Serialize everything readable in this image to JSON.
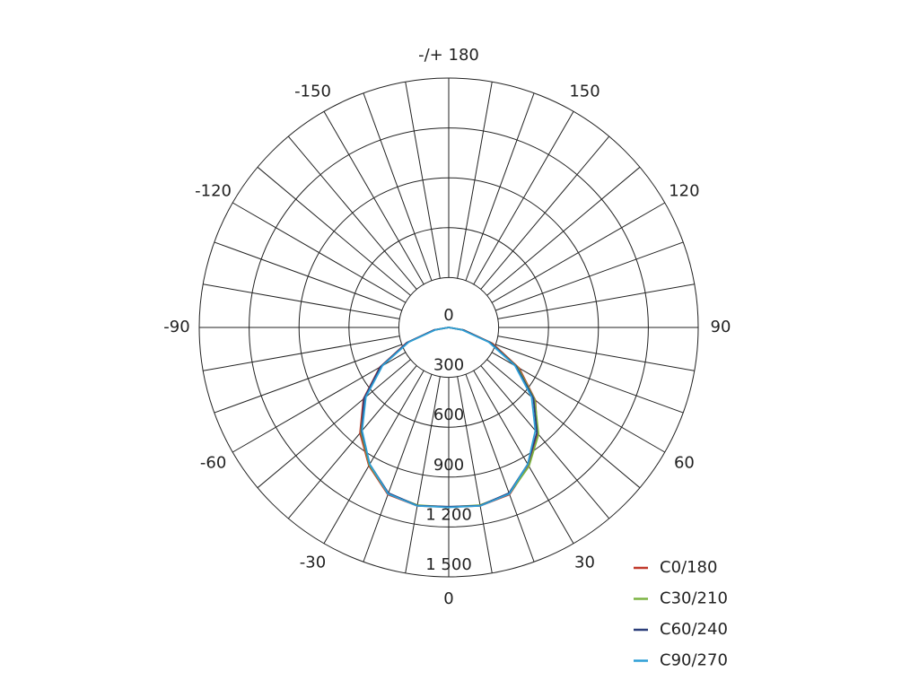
{
  "chart_data": {
    "type": "polar",
    "angle_ticks": [
      0,
      30,
      60,
      90,
      120,
      150,
      {
        "value": 180,
        "label": "-/+ 180"
      },
      -150,
      -120,
      -90,
      -60,
      -30
    ],
    "angle_grid_step": 10,
    "rlim": [
      0,
      1500
    ],
    "rticks": [
      0,
      300,
      600,
      900,
      {
        "value": 1200,
        "label": "1 200"
      },
      {
        "value": 1500,
        "label": "1 500"
      }
    ],
    "angles": [
      -90,
      -80,
      -70,
      -60,
      -50,
      -40,
      -30,
      -20,
      -10,
      0,
      10,
      20,
      30,
      40,
      50,
      60,
      70,
      80,
      90
    ],
    "series": [
      {
        "name": "C0/180",
        "color": "#c0392b",
        "values": [
          0,
          90,
          270,
          480,
          670,
          830,
          960,
          1070,
          1090,
          1080,
          1090,
          1070,
          960,
          830,
          680,
          490,
          280,
          95,
          0
        ]
      },
      {
        "name": "C30/210",
        "color": "#7cb342",
        "values": [
          0,
          85,
          260,
          470,
          660,
          820,
          955,
          1065,
          1085,
          1080,
          1085,
          1065,
          965,
          840,
          675,
          480,
          270,
          90,
          0
        ]
      },
      {
        "name": "C60/240",
        "color": "#2c3e7a",
        "values": [
          0,
          88,
          265,
          475,
          665,
          815,
          950,
          1060,
          1088,
          1078,
          1088,
          1060,
          950,
          825,
          665,
          470,
          265,
          88,
          0
        ]
      },
      {
        "name": "C90/270",
        "color": "#2e9fd6",
        "values": [
          0,
          80,
          255,
          460,
          650,
          810,
          950,
          1065,
          1090,
          1082,
          1090,
          1065,
          950,
          810,
          650,
          460,
          255,
          80,
          0
        ]
      }
    ]
  }
}
